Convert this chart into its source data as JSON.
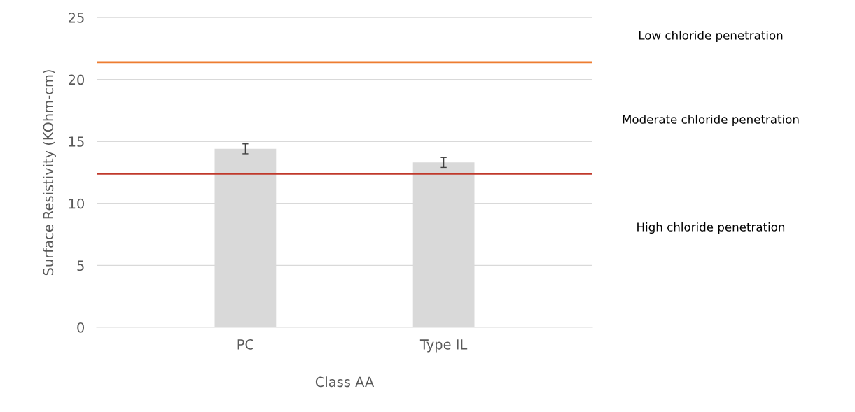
{
  "chart_data": {
    "type": "bar",
    "xlabel": "Class AA",
    "ylabel": "Surface Resistivity (KOhm-cm)",
    "categories": [
      "PC",
      "Type IL"
    ],
    "series": [
      {
        "color": "#d9d9d9",
        "values": [
          14.4,
          13.3
        ],
        "errors": [
          0.4,
          0.4
        ]
      }
    ],
    "ylim": [
      0,
      25
    ],
    "yticks": [
      0,
      5,
      10,
      15,
      20,
      25
    ],
    "grid": "y",
    "legend": false,
    "ref_lines": [
      {
        "axis": "y",
        "value": 21.4,
        "color": "#ed7d31",
        "line_style": "solid"
      },
      {
        "axis": "y",
        "value": 12.4,
        "color": "#c0392b",
        "line_style": "solid"
      }
    ],
    "annotations": [
      "Low chloride penetration",
      "Moderate chloride penetration",
      "High chloride penetration"
    ]
  }
}
